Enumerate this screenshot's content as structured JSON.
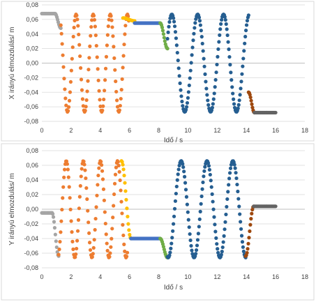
{
  "colors": {
    "gray": "#a5a5a5",
    "orange": "#ed7d31",
    "yellow": "#ffc000",
    "steel_blue": "#4472c4",
    "green": "#70ad47",
    "dark_blue": "#255e91",
    "brown": "#9e480e",
    "dark_gray": "#636363",
    "grid": "#d9d9d9"
  },
  "chart_data": [
    {
      "type": "scatter",
      "title": "",
      "xlabel": "Idő / s",
      "ylabel": "X irányú elmozdulás/ m",
      "xlim": [
        0,
        18
      ],
      "ylim": [
        -0.08,
        0.08
      ],
      "x_ticks": [
        "0",
        "2",
        "4",
        "6",
        "8",
        "10",
        "12",
        "14",
        "16",
        "18"
      ],
      "y_ticks": [
        "0,08",
        "0,06",
        "0,04",
        "0,02",
        "0,00",
        "-0,02",
        "-0,04",
        "-0,06",
        "-0,08"
      ],
      "grid": "horizontal",
      "legend": "none",
      "segments": [
        {
          "kind": "flat",
          "color": "gray",
          "t0": 0.0,
          "t1": 0.9,
          "value": 0.068
        },
        {
          "kind": "transition",
          "color": "gray",
          "t0": 0.9,
          "t1": 1.3,
          "from": 0.068,
          "to": 0.048
        },
        {
          "kind": "sine",
          "color": "orange",
          "t0": 1.3,
          "t1": 5.95,
          "center": 0.0,
          "amplitude": 0.067,
          "period": 1.17,
          "phase_deg": 129
        },
        {
          "kind": "transition",
          "color": "yellow",
          "t0": 5.55,
          "t1": 6.35,
          "from": 0.062,
          "to": 0.058
        },
        {
          "kind": "flat",
          "color": "steel_blue",
          "t0": 6.35,
          "t1": 8.1,
          "value": 0.055
        },
        {
          "kind": "transition",
          "color": "green",
          "t0": 8.1,
          "t1": 8.6,
          "from": 0.055,
          "to": 0.02
        },
        {
          "kind": "sine",
          "color": "dark_blue",
          "t0": 8.6,
          "t1": 14.15,
          "center": 0.0,
          "amplitude": 0.067,
          "period": 1.77,
          "phase_deg": 30
        },
        {
          "kind": "transition",
          "color": "brown",
          "t0": 14.15,
          "t1": 14.55,
          "from": -0.04,
          "to": -0.068
        },
        {
          "kind": "flat",
          "color": "dark_gray",
          "t0": 14.55,
          "t1": 16.0,
          "value": -0.068
        }
      ]
    },
    {
      "type": "scatter",
      "title": "",
      "xlabel": "Idő / s",
      "ylabel": "Y irányú elmozdulás/ m",
      "xlim": [
        0,
        18
      ],
      "ylim": [
        -0.08,
        0.08
      ],
      "x_ticks": [
        "0",
        "2",
        "4",
        "6",
        "8",
        "10",
        "12",
        "14",
        "16",
        "18"
      ],
      "y_ticks": [
        "0,08",
        "0,06",
        "0,04",
        "0,02",
        "0,00",
        "-0,02",
        "-0,04",
        "-0,06",
        "-0,08"
      ],
      "grid": "horizontal",
      "legend": "none",
      "segments": [
        {
          "kind": "flat",
          "color": "gray",
          "t0": 0.0,
          "t1": 0.7,
          "value": -0.005
        },
        {
          "kind": "transition",
          "color": "gray",
          "t0": 0.7,
          "t1": 1.15,
          "from": -0.005,
          "to": -0.064
        },
        {
          "kind": "sine",
          "color": "orange",
          "t0": 1.15,
          "t1": 5.85,
          "center": 0.0,
          "amplitude": 0.066,
          "period": 1.17,
          "phase_deg": -70
        },
        {
          "kind": "transition",
          "color": "yellow",
          "t0": 5.45,
          "t1": 6.1,
          "from": 0.066,
          "to": -0.04
        },
        {
          "kind": "flat",
          "color": "steel_blue",
          "t0": 6.1,
          "t1": 8.1,
          "value": -0.04
        },
        {
          "kind": "transition",
          "color": "green",
          "t0": 8.1,
          "t1": 8.6,
          "from": -0.04,
          "to": -0.066
        },
        {
          "kind": "sine",
          "color": "dark_blue",
          "t0": 8.6,
          "t1": 13.95,
          "center": 0.0,
          "amplitude": 0.066,
          "period": 1.77,
          "phase_deg": -100
        },
        {
          "kind": "transition",
          "color": "brown",
          "t0": 13.95,
          "t1": 14.5,
          "from": -0.064,
          "to": 0.004
        },
        {
          "kind": "flat",
          "color": "dark_gray",
          "t0": 14.5,
          "t1": 16.0,
          "value": 0.004
        }
      ]
    }
  ]
}
